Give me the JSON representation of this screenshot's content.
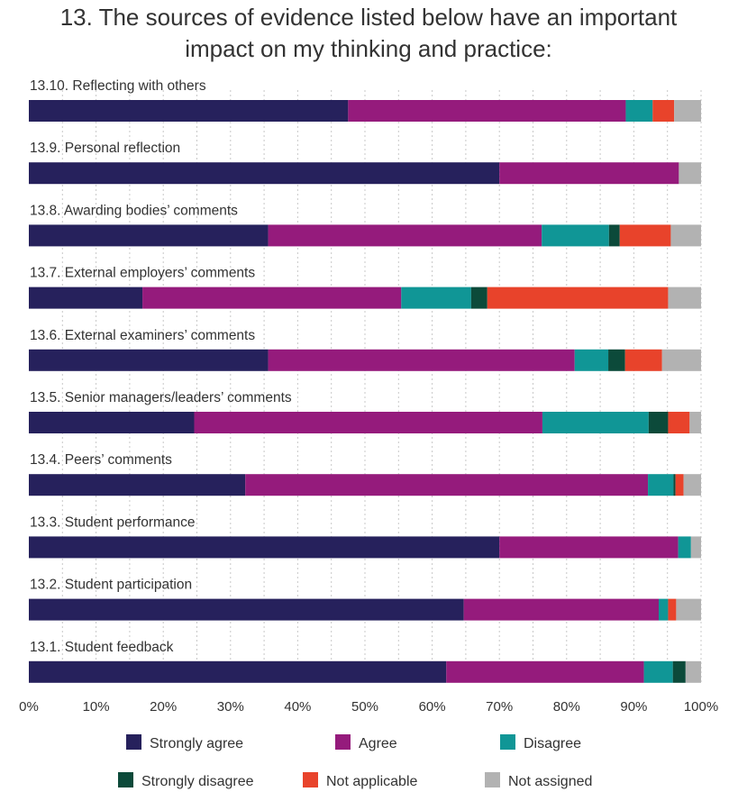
{
  "chart_data": {
    "type": "bar",
    "orientation": "horizontal",
    "stacked": true,
    "percent": true,
    "title": "13. The sources of evidence listed below have an important impact on my thinking and practice:",
    "title_lines": [
      "13. The sources of evidence listed below have an important",
      "impact on my thinking and practice:"
    ],
    "categories": [
      "13.10. Reflecting with others",
      "13.9. Personal reflection",
      "13.8. Awarding bodies’ comments",
      "13.7. External employers’ comments",
      "13.6. External examiners’ comments",
      "13.5. Senior managers/leaders’ comments",
      "13.4. Peers’ comments",
      "13.3. Student performance",
      "13.2. Student participation",
      "13.1. Student feedback"
    ],
    "series": [
      {
        "name": "Strongly agree",
        "color": "#26215c",
        "values": [
          47.5,
          70.0,
          35.6,
          16.9,
          35.6,
          24.6,
          32.2,
          70.0,
          64.7,
          62.1
        ]
      },
      {
        "name": "Agree",
        "color": "#951b7c",
        "values": [
          41.3,
          26.7,
          40.7,
          38.5,
          45.6,
          51.8,
          59.9,
          26.6,
          29.0,
          29.4
        ]
      },
      {
        "name": "Disagree",
        "color": "#109696",
        "values": [
          4.0,
          0.0,
          10.0,
          10.4,
          5.0,
          15.8,
          3.8,
          1.9,
          1.4,
          4.3
        ]
      },
      {
        "name": "Strongly disagree",
        "color": "#0c4a3a",
        "values": [
          0.0,
          0.0,
          1.6,
          2.4,
          2.5,
          2.9,
          0.3,
          0.0,
          0.0,
          1.9
        ]
      },
      {
        "name": "Not applicable",
        "color": "#e8432b",
        "values": [
          3.2,
          0.0,
          7.6,
          26.9,
          5.5,
          3.2,
          1.2,
          0.0,
          1.2,
          0.0
        ]
      },
      {
        "name": "Not assigned",
        "color": "#b2b2b2",
        "values": [
          4.0,
          3.3,
          4.5,
          4.9,
          5.8,
          1.7,
          2.6,
          1.5,
          3.7,
          2.3
        ]
      }
    ],
    "xlim": [
      0,
      100
    ],
    "ticks": [
      "0%",
      "10%",
      "20%",
      "30%",
      "40%",
      "50%",
      "60%",
      "70%",
      "80%",
      "90%",
      "100%"
    ],
    "grid": true,
    "grid_style": "dotted vertical",
    "legend_position": "bottom"
  }
}
